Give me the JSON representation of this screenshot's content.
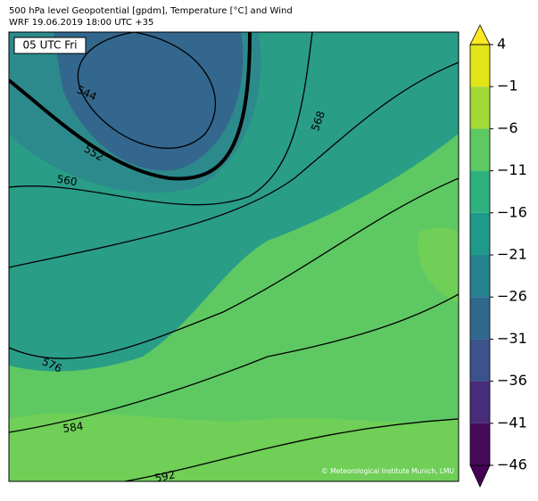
{
  "header": {
    "title": "500 hPa level Geopotential [gpdm], Temperature [°C] and Wind",
    "subtitle": "WRF 19.06.2019 18:00 UTC +35"
  },
  "map": {
    "time_label": "05 UTC Fri",
    "credit": "© Meteorological Institute Munich, LMU",
    "contour_labels": [
      544,
      552,
      560,
      568,
      576,
      584,
      592
    ]
  },
  "colorbar": {
    "ticks": [
      4,
      {
        "value": -1,
        "label": "−1"
      },
      {
        "value": -6,
        "label": "−6"
      },
      {
        "value": -11,
        "label": "−11"
      },
      {
        "value": -16,
        "label": "−16"
      },
      {
        "value": -21,
        "label": "−21"
      },
      {
        "value": -26,
        "label": "−26"
      },
      {
        "value": -31,
        "label": "−31"
      },
      {
        "value": -36,
        "label": "−36"
      },
      {
        "value": -41,
        "label": "−41"
      },
      {
        "value": -46,
        "label": "−46"
      }
    ],
    "colors": [
      "#e3e418",
      "#a2da37",
      "#5ec962",
      "#2db27d",
      "#1f9a8a",
      "#26828e",
      "#30688e",
      "#3b528b",
      "#472d7b",
      "#470a59"
    ],
    "extend_colors": [
      "#fde725",
      "#440154"
    ]
  }
}
